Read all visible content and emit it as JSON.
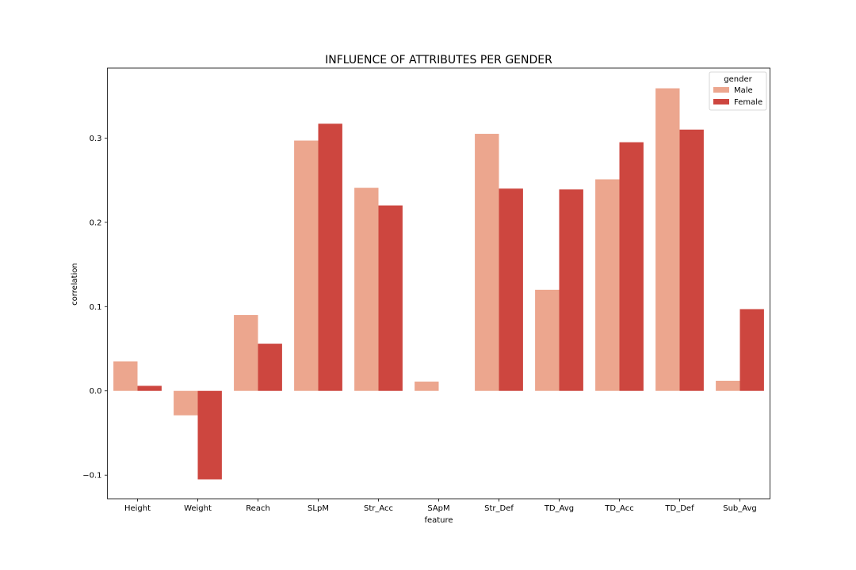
{
  "chart_data": {
    "type": "bar",
    "title": "INFLUENCE OF ATTRIBUTES PER GENDER",
    "xlabel": "feature",
    "ylabel": "correlation",
    "categories": [
      "Height",
      "Weight",
      "Reach",
      "SLpM",
      "Str_Acc",
      "SApM",
      "Str_Def",
      "TD_Avg",
      "TD_Acc",
      "TD_Def",
      "Sub_Avg"
    ],
    "series": [
      {
        "name": "Male",
        "color": "#eca68e",
        "values": [
          0.035,
          -0.029,
          0.09,
          0.297,
          0.241,
          0.011,
          0.305,
          0.12,
          0.251,
          0.359,
          0.012
        ]
      },
      {
        "name": "Female",
        "color": "#cd463f",
        "values": [
          0.006,
          -0.105,
          0.056,
          0.317,
          0.22,
          0.0,
          0.24,
          0.239,
          0.295,
          0.31,
          0.097
        ]
      }
    ],
    "yticks": [
      -0.1,
      0.0,
      0.1,
      0.2,
      0.3
    ],
    "ytick_labels": [
      "−0.1",
      "0.0",
      "0.1",
      "0.2",
      "0.3"
    ],
    "ylim": [
      -0.128,
      0.383
    ],
    "grid": false,
    "legend": {
      "title": "gender",
      "position": "top-right"
    }
  }
}
